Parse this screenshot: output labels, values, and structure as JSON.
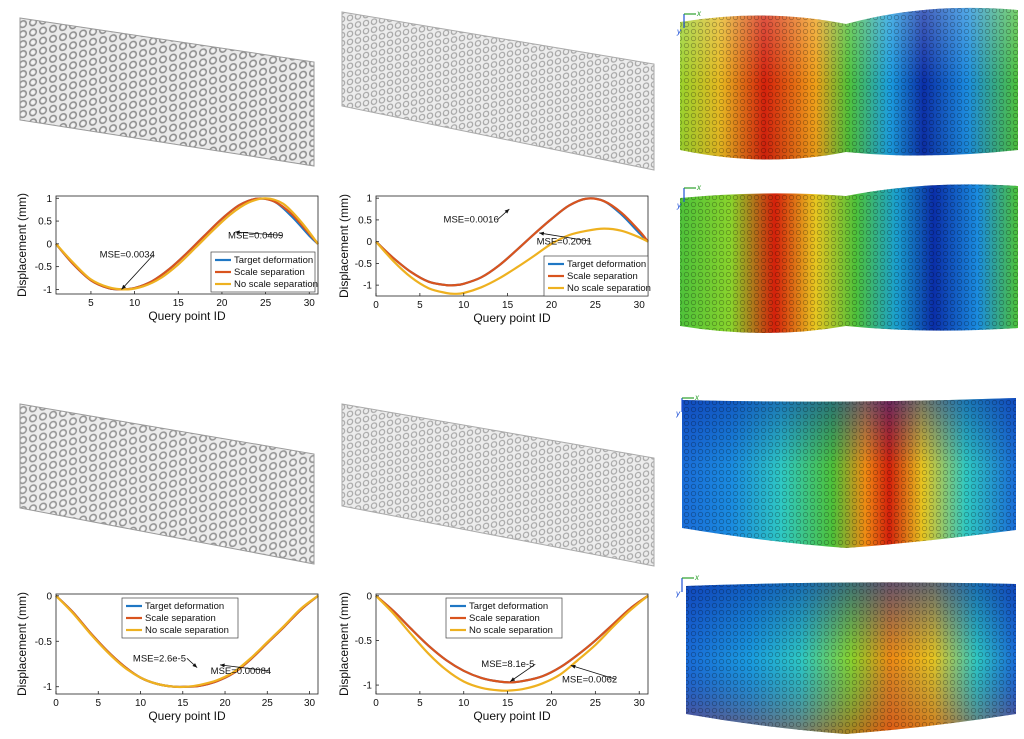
{
  "colors": {
    "target": "#1f77c4",
    "scale": "#d9541e",
    "noscale": "#eeb120",
    "lattice_gray": "#b9b9b9",
    "heat": [
      "#0a2ea8",
      "#1a8ce0",
      "#2fc9c3",
      "#4ec23a",
      "#e3e21c",
      "#f08a13",
      "#d4200b"
    ]
  },
  "images": [
    {
      "kind": "lattice-render",
      "id": "r1c1"
    },
    {
      "kind": "lattice-render",
      "id": "r1c2"
    },
    {
      "kind": "displacement-heatmap",
      "id": "r1c3",
      "axis_x": "x",
      "axis_y": "y"
    },
    {
      "kind": "displacement-heatmap",
      "id": "r2c3",
      "axis_x": "x",
      "axis_y": "y"
    },
    {
      "kind": "lattice-render",
      "id": "r3c1"
    },
    {
      "kind": "lattice-render",
      "id": "r3c2"
    },
    {
      "kind": "displacement-heatmap",
      "id": "r3c3",
      "axis_x": "x",
      "axis_y": "y"
    },
    {
      "kind": "displacement-heatmap",
      "id": "r4c3",
      "axis_x": "x",
      "axis_y": "y"
    }
  ],
  "chart_data": [
    {
      "type": "line",
      "xlabel": "Query point ID",
      "ylabel": "Displacement (mm)",
      "xlim": [
        1,
        31
      ],
      "ylim": [
        -1.1,
        1.05
      ],
      "xticks": [
        5,
        10,
        15,
        20,
        25,
        30
      ],
      "yticks": [
        -1,
        -0.5,
        0,
        0.5,
        1
      ],
      "ytick_labels": [
        "-1",
        "-0.5",
        "0",
        "0.5",
        "1"
      ],
      "legend_position": "bottom-right",
      "series": [
        {
          "name": "Target deformation",
          "color_key": "target",
          "x": [
            1,
            3,
            5,
            7,
            8.5,
            10,
            12,
            14,
            16,
            18,
            20,
            22,
            24,
            26,
            28,
            30,
            31
          ],
          "y": [
            0,
            -0.45,
            -0.8,
            -0.97,
            -1.0,
            -0.97,
            -0.82,
            -0.55,
            -0.2,
            0.18,
            0.55,
            0.85,
            0.99,
            0.93,
            0.6,
            0.18,
            0
          ]
        },
        {
          "name": "Scale separation",
          "color_key": "scale",
          "x": [
            1,
            3,
            5,
            7,
            8.5,
            10,
            12,
            14,
            16,
            18,
            20,
            22,
            24,
            26,
            28,
            30,
            31
          ],
          "y": [
            0,
            -0.45,
            -0.8,
            -0.97,
            -1.0,
            -0.97,
            -0.82,
            -0.55,
            -0.2,
            0.18,
            0.55,
            0.85,
            0.99,
            0.93,
            0.65,
            0.22,
            0
          ]
        },
        {
          "name": "No scale separation",
          "color_key": "noscale",
          "x": [
            1,
            3,
            5,
            7,
            9,
            11,
            13,
            15,
            17,
            19,
            21,
            23,
            25,
            27,
            29,
            31
          ],
          "y": [
            0,
            -0.42,
            -0.78,
            -0.95,
            -1.0,
            -0.93,
            -0.75,
            -0.45,
            -0.08,
            0.3,
            0.65,
            0.9,
            1.0,
            0.88,
            0.5,
            0
          ]
        }
      ],
      "annotations": [
        {
          "text": "MSE=0.0034",
          "x": 6.0,
          "y": -0.3,
          "ax": 8.5,
          "ay": -1.0
        },
        {
          "text": "MSE=0.0409",
          "x": 20.7,
          "y": 0.12,
          "ax": 21.5,
          "ay": 0.26
        }
      ]
    },
    {
      "type": "line",
      "xlabel": "Query point ID",
      "ylabel": "Displacement (mm)",
      "xlim": [
        0,
        31
      ],
      "ylim": [
        -1.25,
        1.05
      ],
      "xticks": [
        0,
        5,
        10,
        15,
        20,
        25,
        30
      ],
      "yticks": [
        -1,
        -0.5,
        0,
        0.5,
        1
      ],
      "ytick_labels": [
        "-1",
        "-0.5",
        "0",
        "0.5",
        "1"
      ],
      "legend_position": "bottom-right",
      "series": [
        {
          "name": "Target deformation",
          "color_key": "target",
          "x": [
            0,
            2,
            4,
            6,
            8,
            9,
            10,
            12,
            14,
            16,
            18,
            20,
            22,
            24,
            26,
            28,
            30,
            31
          ],
          "y": [
            0,
            -0.38,
            -0.7,
            -0.92,
            -1.0,
            -1.0,
            -0.97,
            -0.82,
            -0.55,
            -0.2,
            0.17,
            0.52,
            0.83,
            0.99,
            0.93,
            0.62,
            0.2,
            0
          ]
        },
        {
          "name": "Scale separation",
          "color_key": "scale",
          "x": [
            0,
            2,
            4,
            6,
            8,
            9,
            10,
            12,
            14,
            16,
            18,
            20,
            22,
            24,
            26,
            28,
            30,
            31
          ],
          "y": [
            0,
            -0.38,
            -0.7,
            -0.92,
            -1.0,
            -1.0,
            -0.97,
            -0.82,
            -0.55,
            -0.2,
            0.17,
            0.52,
            0.83,
            0.99,
            0.93,
            0.66,
            0.25,
            0
          ]
        },
        {
          "name": "No scale separation",
          "color_key": "noscale",
          "x": [
            0,
            2,
            4,
            6,
            8,
            9,
            10,
            12,
            14,
            16,
            18,
            20,
            22,
            24,
            26,
            28,
            30,
            31
          ],
          "y": [
            0,
            -0.45,
            -0.82,
            -1.07,
            -1.18,
            -1.2,
            -1.18,
            -1.05,
            -0.85,
            -0.6,
            -0.33,
            -0.05,
            0.15,
            0.25,
            0.3,
            0.25,
            0.1,
            0
          ]
        }
      ],
      "annotations": [
        {
          "text": "MSE=0.0016",
          "x": 7.7,
          "y": 0.44,
          "ax": 15.2,
          "ay": 0.75
        },
        {
          "text": "MSE=0.2001",
          "x": 18.3,
          "y": -0.06,
          "ax": 18.6,
          "ay": 0.2
        }
      ]
    },
    {
      "type": "line",
      "xlabel": "Query point ID",
      "ylabel": "Displacement (mm)",
      "xlim": [
        0,
        31
      ],
      "ylim": [
        -1.08,
        0.02
      ],
      "xticks": [
        0,
        5,
        10,
        15,
        20,
        25,
        30
      ],
      "yticks": [
        -1,
        -0.5,
        0
      ],
      "ytick_labels": [
        "-1",
        "-0.5",
        "0"
      ],
      "legend_position": "top-center",
      "series": [
        {
          "name": "Target deformation",
          "color_key": "target",
          "x": [
            0,
            2,
            4,
            6,
            8,
            10,
            12,
            14,
            15.5,
            17,
            19,
            21,
            23,
            25,
            27,
            29,
            31
          ],
          "y": [
            0,
            -0.18,
            -0.4,
            -0.6,
            -0.77,
            -0.9,
            -0.97,
            -1.0,
            -1.0,
            -0.99,
            -0.94,
            -0.85,
            -0.7,
            -0.52,
            -0.34,
            -0.15,
            0
          ]
        },
        {
          "name": "Scale separation",
          "color_key": "scale",
          "x": [
            0,
            2,
            4,
            6,
            8,
            10,
            12,
            14,
            15.5,
            17,
            19,
            21,
            23,
            25,
            27,
            29,
            31
          ],
          "y": [
            0,
            -0.18,
            -0.4,
            -0.6,
            -0.77,
            -0.9,
            -0.97,
            -1.0,
            -1.0,
            -0.99,
            -0.94,
            -0.85,
            -0.7,
            -0.52,
            -0.34,
            -0.15,
            0
          ]
        },
        {
          "name": "No scale separation",
          "color_key": "noscale",
          "x": [
            0,
            2,
            4,
            6,
            8,
            10,
            12,
            14,
            15.5,
            17,
            19,
            21,
            23,
            25,
            27,
            29,
            31
          ],
          "y": [
            0,
            -0.19,
            -0.41,
            -0.61,
            -0.78,
            -0.9,
            -0.97,
            -1.0,
            -1.0,
            -0.98,
            -0.93,
            -0.84,
            -0.69,
            -0.51,
            -0.33,
            -0.14,
            0
          ]
        }
      ],
      "annotations": [
        {
          "text": "MSE=2.6e-5",
          "x": 9.1,
          "y": -0.72,
          "ax": 16.7,
          "ay": -0.79
        },
        {
          "text": "MSE=0.00084",
          "x": 18.3,
          "y": -0.86,
          "ax": 19.4,
          "ay": -0.76
        }
      ]
    },
    {
      "type": "line",
      "xlabel": "Query point ID",
      "ylabel": "Displacement (mm)",
      "xlim": [
        0,
        31
      ],
      "ylim": [
        -1.1,
        0.02
      ],
      "xticks": [
        0,
        5,
        10,
        15,
        20,
        25,
        30
      ],
      "yticks": [
        -1,
        -0.5,
        0
      ],
      "ytick_labels": [
        "-1",
        "-0.5",
        "0"
      ],
      "legend_position": "top-right",
      "series": [
        {
          "name": "Target deformation",
          "color_key": "target",
          "x": [
            0,
            2,
            4,
            6,
            8,
            10,
            12,
            14,
            15.5,
            17,
            19,
            21,
            23,
            25,
            27,
            29,
            31
          ],
          "y": [
            0,
            -0.17,
            -0.37,
            -0.56,
            -0.72,
            -0.84,
            -0.92,
            -0.96,
            -0.97,
            -0.95,
            -0.9,
            -0.8,
            -0.66,
            -0.5,
            -0.32,
            -0.14,
            0
          ]
        },
        {
          "name": "Scale separation",
          "color_key": "scale",
          "x": [
            0,
            2,
            4,
            6,
            8,
            10,
            12,
            14,
            15.5,
            17,
            19,
            21,
            23,
            25,
            27,
            29,
            31
          ],
          "y": [
            0,
            -0.17,
            -0.37,
            -0.56,
            -0.72,
            -0.84,
            -0.92,
            -0.96,
            -0.97,
            -0.95,
            -0.9,
            -0.8,
            -0.66,
            -0.5,
            -0.32,
            -0.14,
            0
          ]
        },
        {
          "name": "No scale separation",
          "color_key": "noscale",
          "x": [
            0,
            2,
            4,
            6,
            8,
            10,
            12,
            14,
            15.5,
            17,
            19,
            21,
            23,
            25,
            27,
            29,
            31
          ],
          "y": [
            0,
            -0.2,
            -0.43,
            -0.65,
            -0.83,
            -0.96,
            -1.03,
            -1.06,
            -1.06,
            -1.04,
            -0.98,
            -0.88,
            -0.72,
            -0.55,
            -0.35,
            -0.16,
            0
          ]
        }
      ],
      "annotations": [
        {
          "text": "MSE=8.1e-5",
          "x": 12.0,
          "y": -0.8,
          "ax": 15.3,
          "ay": -0.96
        },
        {
          "text": "MSE=0.0062",
          "x": 21.2,
          "y": -0.97,
          "ax": 22.2,
          "ay": -0.78
        }
      ]
    }
  ]
}
